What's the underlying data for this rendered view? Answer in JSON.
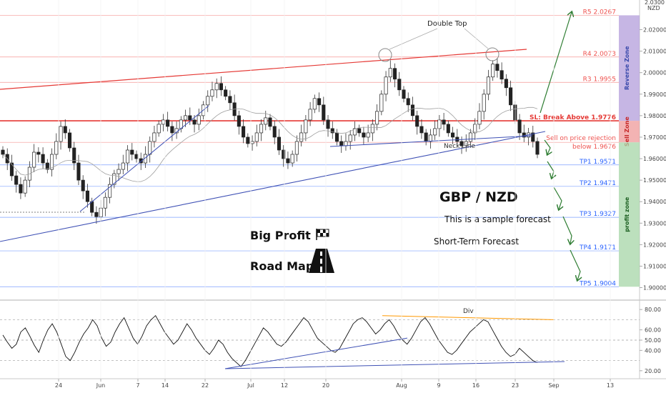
{
  "chart_data": [
    {
      "type": "candlestick",
      "title": "GBP / NZD",
      "subtitle": "This is a sample forecast",
      "note": "Short-Term Forecast",
      "currency_label": "NZD",
      "top_tick": "2.0300",
      "ylim": [
        1.8975,
        2.0305
      ],
      "y_ticks": [
        "2.02000",
        "2.01000",
        "2.00000",
        "1.99000",
        "1.98000",
        "1.97000",
        "1.96000",
        "1.95000",
        "1.94000",
        "1.93000",
        "1.92000",
        "1.91000",
        "1.90000"
      ],
      "x_ticks": [
        "24",
        "Jun",
        "7",
        "14",
        "22",
        "Jul",
        "12",
        "20",
        "Aug",
        "9",
        "16",
        "23",
        "Sep",
        "13"
      ],
      "levels": [
        {
          "label": "R5 2.0267",
          "value": 2.0267,
          "color": "#ef5350"
        },
        {
          "label": "R4 2.0073",
          "value": 2.0073,
          "color": "#ef5350"
        },
        {
          "label": "R3 1.9955",
          "value": 1.9955,
          "color": "#ef5350"
        },
        {
          "label": "SL: Break Above 1.9776",
          "value": 1.9776,
          "color": "#e53935"
        },
        {
          "label": "Sell on price rejection",
          "value": 1.9676,
          "color": "#ef5350",
          "label2": "below 1.9676"
        },
        {
          "label": "TP1 1.9571",
          "value": 1.9571,
          "color": "#2962ff"
        },
        {
          "label": "TP2 1.9471",
          "value": 1.9471,
          "color": "#2962ff"
        },
        {
          "label": "TP3 1.9327",
          "value": 1.9327,
          "color": "#2962ff"
        },
        {
          "label": "TP4 1.9171",
          "value": 1.9171,
          "color": "#2962ff"
        },
        {
          "label": "TP5 1.9004",
          "value": 1.9004,
          "color": "#2962ff"
        }
      ],
      "zones": [
        {
          "label": "Reverse Zone",
          "from": 2.0267,
          "to": 1.9776,
          "color": "#b39ddb"
        },
        {
          "label": "Sell Zone",
          "from": 1.9776,
          "to": 1.9676,
          "color": "#ef9a9a"
        },
        {
          "label": "profit zone",
          "from": 1.9676,
          "to": 1.9004,
          "color": "#a5d6a7"
        }
      ],
      "annotations": [
        "Double Top",
        "Neck Line"
      ],
      "series": [
        {
          "type": "candles",
          "close": [
            1.962,
            1.958,
            1.952,
            1.948,
            1.944,
            1.95,
            1.956,
            1.963,
            1.962,
            1.958,
            1.955,
            1.962,
            1.968,
            1.975,
            1.972,
            1.965,
            1.958,
            1.95,
            1.945,
            1.94,
            1.935,
            1.933,
            1.937,
            1.942,
            1.948,
            1.953,
            1.955,
            1.958,
            1.964,
            1.962,
            1.96,
            1.958,
            1.962,
            1.968,
            1.972,
            1.976,
            1.978,
            1.975,
            1.972,
            1.974,
            1.978,
            1.98,
            1.978,
            1.976,
            1.98,
            1.985,
            1.989,
            1.992,
            1.995,
            1.992,
            1.989,
            1.986,
            1.98,
            1.975,
            1.97,
            1.967,
            1.968,
            1.972,
            1.976,
            1.979,
            1.975,
            1.97,
            1.964,
            1.96,
            1.958,
            1.962,
            1.968,
            1.972,
            1.978,
            1.983,
            1.988,
            1.985,
            1.978,
            1.974,
            1.972,
            1.968,
            1.966,
            1.968,
            1.971,
            1.974,
            1.972,
            1.97,
            1.972,
            1.976,
            1.982,
            1.99,
            1.998,
            2.002,
            1.997,
            1.992,
            1.988,
            1.985,
            1.98,
            1.975,
            1.972,
            1.968,
            1.971,
            1.974,
            1.978,
            1.976,
            1.972,
            1.97,
            1.968,
            1.966,
            1.968,
            1.972,
            1.976,
            1.982,
            1.99,
            1.998,
            2.004,
            2.001,
            1.997,
            1.993,
            1.985,
            1.978,
            1.972,
            1.97,
            1.972,
            1.968,
            1.962
          ]
        }
      ]
    },
    {
      "type": "line",
      "ylim": [
        15,
        85
      ],
      "y_ticks": [
        "80.00",
        "60.00",
        "50.00",
        "40.00",
        "20.00"
      ],
      "annotations": [
        "Div"
      ],
      "series": [
        {
          "values": [
            55,
            48,
            42,
            46,
            58,
            62,
            54,
            45,
            38,
            50,
            60,
            66,
            58,
            46,
            34,
            30,
            38,
            48,
            56,
            62,
            70,
            64,
            52,
            44,
            48,
            58,
            66,
            72,
            62,
            52,
            46,
            54,
            64,
            70,
            74,
            66,
            58,
            52,
            46,
            50,
            58,
            66,
            60,
            52,
            46,
            40,
            36,
            42,
            50,
            46,
            38,
            32,
            28,
            24,
            30,
            38,
            46,
            54,
            62,
            58,
            52,
            46,
            44,
            48,
            54,
            60,
            66,
            72,
            68,
            60,
            52,
            48,
            44,
            40,
            38,
            42,
            50,
            58,
            66,
            70,
            72,
            68,
            62,
            56,
            60,
            66,
            70,
            64,
            56,
            50,
            46,
            52,
            60,
            68,
            72,
            66,
            58,
            50,
            44,
            38,
            36,
            40,
            46,
            52,
            58,
            62,
            66,
            70,
            68,
            60,
            52,
            44,
            38,
            34,
            36,
            42,
            38,
            34,
            30,
            28
          ]
        }
      ]
    }
  ],
  "header": {
    "big_profit": "Big Profit",
    "road_map": "Road Map"
  }
}
